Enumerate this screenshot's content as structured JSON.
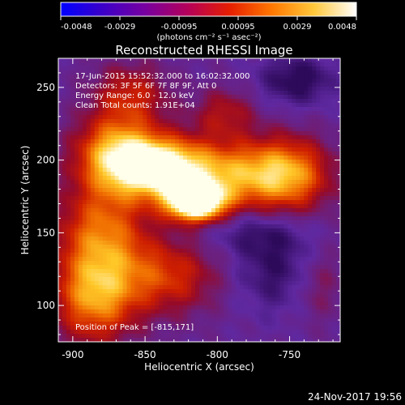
{
  "chart_data": {
    "type": "heatmap",
    "title": "Reconstructed RHESSI Image",
    "xlabel": "Heliocentric X (arcsec)",
    "ylabel": "Heliocentric Y (arcsec)",
    "xlim": [
      -910,
      -715
    ],
    "ylim": [
      75,
      270
    ],
    "xticks": [
      -900,
      -850,
      -800,
      -750
    ],
    "yticks": [
      100,
      150,
      200,
      250
    ],
    "info_lines": [
      "17-Jun-2015 15:52:32.000 to 16:02:32.000",
      "Detectors: 3F 5F 6F 7F 8F 9F, Att 0",
      "Energy Range: 6.0 - 12.0 keV",
      "Clean     Total counts: 1.91E+04"
    ],
    "peak_text": "Position of Peak = [-815,171]",
    "peak": {
      "x": -815,
      "y": 171
    },
    "colorbar": {
      "min": -0.0048,
      "max": 0.0048,
      "ticks": [
        "-0.0048",
        "-0.0029",
        "-0.00095",
        "0.00095",
        "0.0029",
        "0.0048"
      ],
      "units_label": "(photons cm⁻² s⁻¹ asec⁻²)",
      "colormap": [
        "#0000ff",
        "#3c00c8",
        "#7800a0",
        "#b4005a",
        "#e61e00",
        "#ff7800",
        "#ffc83c",
        "#ffffff"
      ]
    },
    "image_description_colors": {
      "background_low": "#5a2496",
      "mid": "#c81e00",
      "high": "#ffd24a",
      "peak": "#fffff0"
    },
    "blobs": [
      {
        "x": -815,
        "y": 171,
        "sx": 14,
        "sy": 9,
        "amp": 1.0
      },
      {
        "x": -840,
        "y": 195,
        "sx": 22,
        "sy": 14,
        "amp": 0.75
      },
      {
        "x": -870,
        "y": 205,
        "sx": 20,
        "sy": 18,
        "amp": 0.55
      },
      {
        "x": -790,
        "y": 190,
        "sx": 30,
        "sy": 16,
        "amp": 0.5
      },
      {
        "x": -750,
        "y": 190,
        "sx": 20,
        "sy": 18,
        "amp": 0.45
      },
      {
        "x": -880,
        "y": 150,
        "sx": 22,
        "sy": 25,
        "amp": 0.45
      },
      {
        "x": -885,
        "y": 105,
        "sx": 20,
        "sy": 22,
        "amp": 0.5
      },
      {
        "x": -835,
        "y": 120,
        "sx": 25,
        "sy": 18,
        "amp": 0.35
      },
      {
        "x": -860,
        "y": 245,
        "sx": 18,
        "sy": 15,
        "amp": 0.3
      },
      {
        "x": -795,
        "y": 232,
        "sx": 15,
        "sy": 12,
        "amp": 0.25
      },
      {
        "x": -730,
        "y": 115,
        "sx": 12,
        "sy": 18,
        "amp": 0.15
      }
    ],
    "dips": [
      {
        "x": -745,
        "y": 255,
        "sx": 18,
        "sy": 12,
        "amp": 0.25
      },
      {
        "x": -760,
        "y": 125,
        "sx": 20,
        "sy": 20,
        "amp": 0.2
      },
      {
        "x": -775,
        "y": 150,
        "sx": 25,
        "sy": 10,
        "amp": 0.15
      }
    ]
  },
  "footer": {
    "datestamp": "24-Nov-2017 19:56"
  }
}
